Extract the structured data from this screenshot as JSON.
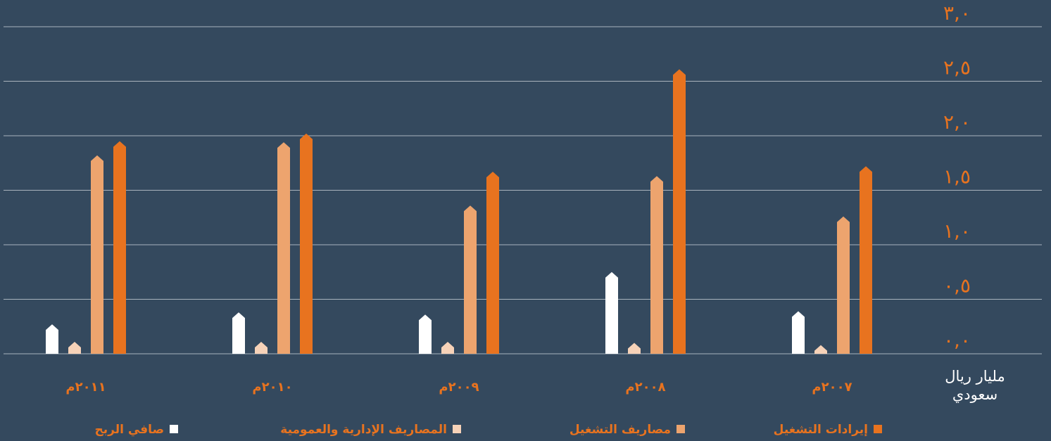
{
  "chart_data": {
    "type": "bar",
    "y_label": "مليار ريال سعودي",
    "categories": [
      "٢٠٠٧م",
      "٢٠٠٨م",
      "٢٠٠٩م",
      "٢٠١٠م",
      "٢٠١١م"
    ],
    "series": [
      {
        "name": "إيرادات التشغيل",
        "color": "#e8731f",
        "values": [
          1.72,
          2.61,
          1.67,
          2.02,
          1.95
        ]
      },
      {
        "name": "مصاريف التشغيل",
        "color": "#eda46e",
        "values": [
          1.26,
          1.63,
          1.36,
          1.94,
          1.82
        ]
      },
      {
        "name": "المصاريف الإدارية والعمومية",
        "color": "#f6d2b8",
        "values": [
          0.08,
          0.1,
          0.11,
          0.11,
          0.11
        ]
      },
      {
        "name": "صافي الربح",
        "color": "#ffffff",
        "values": [
          0.39,
          0.75,
          0.36,
          0.38,
          0.27
        ]
      }
    ],
    "ylim": [
      0,
      3
    ],
    "yticks": [
      {
        "value": 0,
        "label": "٠,٠"
      },
      {
        "value": 0.5,
        "label": "٠,٥"
      },
      {
        "value": 1,
        "label": "١,٠"
      },
      {
        "value": 1.5,
        "label": "١,٥"
      },
      {
        "value": 2,
        "label": "٢,٠"
      },
      {
        "value": 2.5,
        "label": "٢,٥"
      },
      {
        "value": 3,
        "label": "٣,٠"
      }
    ],
    "grid": true
  }
}
